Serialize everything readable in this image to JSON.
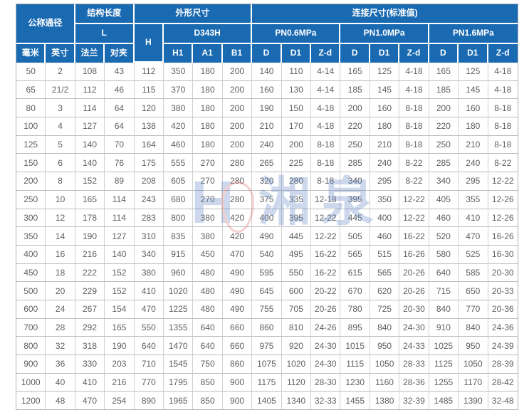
{
  "header": {
    "row1": {
      "nominal_diameter": "公称通径",
      "structure_length": "结构长度",
      "overall_size": "外形尺寸",
      "connection_size": "连接尺寸(标准值)"
    },
    "row2": {
      "L": "L",
      "H": "H",
      "model": "D343H",
      "pn06": "PN0.6MPa",
      "pn10": "PN1.0MPa",
      "pn16": "PN1.6MPa"
    },
    "row3": {
      "mm": "毫米",
      "inch": "英寸",
      "flange": "法兰",
      "wafer": "对夹",
      "H1": "H1",
      "A1": "A1",
      "B1": "B1",
      "D": "D",
      "D1": "D1",
      "Zd": "Z-d"
    }
  },
  "rows": [
    [
      "50",
      "2",
      "108",
      "43",
      "112",
      "350",
      "180",
      "200",
      "140",
      "110",
      "4-14",
      "165",
      "125",
      "4-18",
      "165",
      "125",
      "4-18"
    ],
    [
      "65",
      "21/2",
      "112",
      "46",
      "115",
      "370",
      "180",
      "200",
      "160",
      "130",
      "4-14",
      "185",
      "145",
      "4-18",
      "185",
      "145",
      "4-18"
    ],
    [
      "80",
      "3",
      "114",
      "64",
      "120",
      "380",
      "180",
      "200",
      "190",
      "150",
      "4-18",
      "200",
      "160",
      "8-18",
      "200",
      "160",
      "8-18"
    ],
    [
      "100",
      "4",
      "127",
      "64",
      "138",
      "420",
      "180",
      "200",
      "210",
      "170",
      "4-18",
      "220",
      "180",
      "8-18",
      "220",
      "180",
      "8-18"
    ],
    [
      "125",
      "5",
      "140",
      "70",
      "164",
      "460",
      "180",
      "200",
      "240",
      "200",
      "8-18",
      "250",
      "210",
      "8-18",
      "250",
      "210",
      "8-18"
    ],
    [
      "150",
      "6",
      "140",
      "76",
      "175",
      "555",
      "270",
      "280",
      "265",
      "225",
      "8-18",
      "285",
      "240",
      "8-22",
      "285",
      "240",
      "8-22"
    ],
    [
      "200",
      "8",
      "152",
      "89",
      "208",
      "605",
      "270",
      "280",
      "320",
      "280",
      "8-18",
      "340",
      "295",
      "8-22",
      "340",
      "295",
      "12-22"
    ],
    [
      "250",
      "10",
      "165",
      "114",
      "243",
      "680",
      "270",
      "280",
      "375",
      "335",
      "12-18",
      "395",
      "350",
      "12-22",
      "405",
      "355",
      "12-26"
    ],
    [
      "300",
      "12",
      "178",
      "114",
      "283",
      "800",
      "380",
      "420",
      "400",
      "395",
      "12-22",
      "445",
      "400",
      "12-22",
      "460",
      "410",
      "12-26"
    ],
    [
      "350",
      "14",
      "190",
      "127",
      "310",
      "835",
      "380",
      "420",
      "490",
      "445",
      "12-22",
      "505",
      "460",
      "16-22",
      "520",
      "470",
      "16-26"
    ],
    [
      "400",
      "16",
      "216",
      "140",
      "340",
      "915",
      "450",
      "470",
      "540",
      "495",
      "16-22",
      "565",
      "515",
      "16-26",
      "580",
      "525",
      "16-30"
    ],
    [
      "450",
      "18",
      "222",
      "152",
      "380",
      "960",
      "480",
      "490",
      "595",
      "550",
      "16-22",
      "615",
      "565",
      "20-26",
      "640",
      "585",
      "20-30"
    ],
    [
      "500",
      "20",
      "229",
      "152",
      "410",
      "1020",
      "480",
      "490",
      "645",
      "600",
      "20-22",
      "670",
      "620",
      "20-26",
      "715",
      "650",
      "20-33"
    ],
    [
      "600",
      "24",
      "267",
      "154",
      "470",
      "1225",
      "480",
      "490",
      "755",
      "705",
      "20-26",
      "780",
      "725",
      "20-30",
      "840",
      "770",
      "20-36"
    ],
    [
      "700",
      "28",
      "292",
      "165",
      "550",
      "1355",
      "640",
      "660",
      "860",
      "810",
      "24-26",
      "895",
      "840",
      "24-30",
      "910",
      "840",
      "24-36"
    ],
    [
      "800",
      "32",
      "318",
      "190",
      "640",
      "1470",
      "640",
      "660",
      "975",
      "920",
      "24-30",
      "1015",
      "950",
      "24-33",
      "1025",
      "950",
      "24-39"
    ],
    [
      "900",
      "36",
      "330",
      "203",
      "710",
      "1545",
      "750",
      "860",
      "1075",
      "1020",
      "24-30",
      "1115",
      "1050",
      "28-33",
      "1125",
      "1050",
      "28-39"
    ],
    [
      "1000",
      "40",
      "410",
      "216",
      "770",
      "1795",
      "850",
      "900",
      "1175",
      "1120",
      "28-30",
      "1230",
      "1160",
      "28-36",
      "1255",
      "1170",
      "28-42"
    ],
    [
      "1200",
      "48",
      "470",
      "254",
      "890",
      "1965",
      "850",
      "900",
      "1405",
      "1340",
      "32-33",
      "1455",
      "1380",
      "32-39",
      "1485",
      "1390",
      "32-48"
    ]
  ],
  "watermark": {
    "letter": "H",
    "text": "湘泉"
  },
  "colors": {
    "header_bg": "#1a6ab2",
    "header_text": "#ffffff",
    "cell_text": "#5f5f5f",
    "border": "#bdbdbd",
    "watermark_blue": "#5b82c4",
    "watermark_red": "#e06060"
  }
}
